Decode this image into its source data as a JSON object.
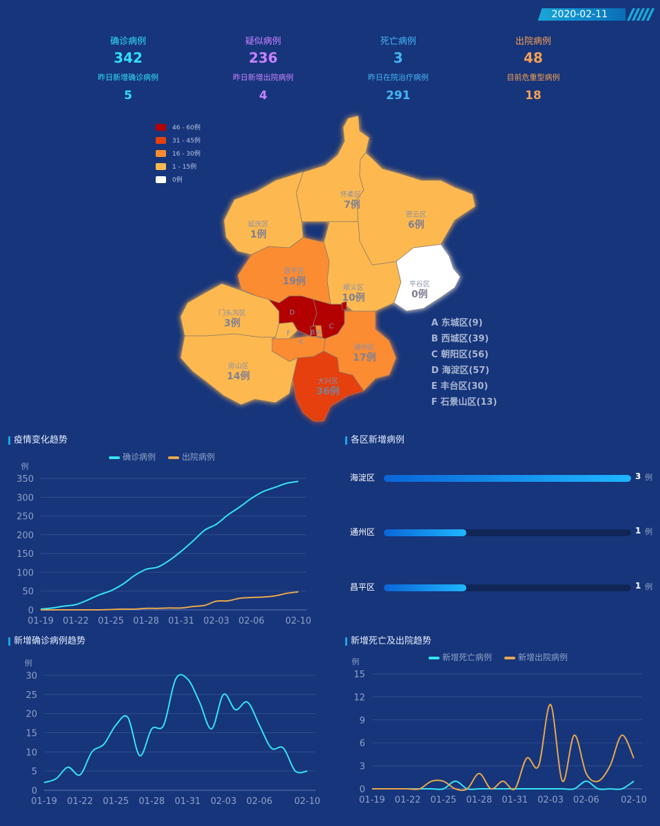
{
  "header": {
    "date": "2020-02-11"
  },
  "stats": [
    {
      "label": "确诊病例",
      "value": "342",
      "sub_label": "昨日新增确诊病例",
      "sub_value": "5",
      "color": "#2fe0f7"
    },
    {
      "label": "疑似病例",
      "value": "236",
      "sub_label": "昨日新增出院病例",
      "sub_value": "4",
      "color": "#c783ff"
    },
    {
      "label": "死亡病例",
      "value": "3",
      "sub_label": "昨日在院治疗病例",
      "sub_value": "291",
      "color": "#45b6f5"
    },
    {
      "label": "出院病例",
      "value": "48",
      "sub_label": "目前危重型病例",
      "sub_value": "18",
      "color": "#f5a056"
    }
  ],
  "map_legend": [
    {
      "label": "46 - 60例",
      "color": "#b30000"
    },
    {
      "label": "31 - 45例",
      "color": "#e5410d"
    },
    {
      "label": "16 - 30例",
      "color": "#fb8c32"
    },
    {
      "label": "1 - 15例",
      "color": "#fdb94f"
    },
    {
      "label": "0例",
      "color": "#ffffff"
    }
  ],
  "map_districts": [
    {
      "name": "怀柔区",
      "count": "7例"
    },
    {
      "name": "密云区",
      "count": "6例"
    },
    {
      "name": "延庆区",
      "count": "1例"
    },
    {
      "name": "昌平区",
      "count": "19例"
    },
    {
      "name": "平谷区",
      "count": "0例"
    },
    {
      "name": "顺义区",
      "count": "10例"
    },
    {
      "name": "门头沟区",
      "count": "3例"
    },
    {
      "name": "通州区",
      "count": "17例"
    },
    {
      "name": "房山区",
      "count": "14例"
    },
    {
      "name": "大兴区",
      "count": "36例"
    }
  ],
  "map_letters": [
    "D",
    "C",
    "F",
    "B",
    "A",
    "E"
  ],
  "district_key": [
    "A 东城区(9)",
    "B 西城区(39)",
    "C 朝阳区(56)",
    "D 海淀区(57)",
    "E 丰台区(30)",
    "F 石景山区(13)"
  ],
  "panels": {
    "trend": "疫情变化趋势",
    "district_new": "各区新增病例",
    "new_confirmed": "新增确诊病例趋势",
    "new_death_discharge": "新增死亡及出院趋势"
  },
  "chart_data": [
    {
      "type": "line",
      "title": "疫情变化趋势",
      "ylabel": "例",
      "ylim": [
        0,
        350
      ],
      "yticks": [
        0,
        50,
        100,
        150,
        200,
        250,
        300,
        350
      ],
      "xticks": [
        "01-19",
        "01-22",
        "01-25",
        "01-28",
        "01-31",
        "02-03",
        "02-06",
        "02-10"
      ],
      "legend_position": "top-center",
      "x": [
        "01-19",
        "01-20",
        "01-21",
        "01-22",
        "01-23",
        "01-24",
        "01-25",
        "01-26",
        "01-27",
        "01-28",
        "01-29",
        "01-30",
        "01-31",
        "02-01",
        "02-02",
        "02-03",
        "02-04",
        "02-05",
        "02-06",
        "02-07",
        "02-08",
        "02-09",
        "02-10"
      ],
      "series": [
        {
          "name": "确诊病例",
          "color": "#35e5f2",
          "values": [
            2,
            5,
            10,
            14,
            26,
            40,
            51,
            68,
            91,
            108,
            114,
            132,
            156,
            183,
            212,
            228,
            253,
            274,
            297,
            315,
            326,
            337,
            342
          ]
        },
        {
          "name": "出院病例",
          "color": "#e9a84b",
          "values": [
            0,
            0,
            0,
            0,
            0,
            0,
            1,
            2,
            2,
            4,
            4,
            5,
            5,
            9,
            12,
            23,
            24,
            31,
            33,
            34,
            37,
            44,
            48
          ]
        }
      ]
    },
    {
      "type": "bar",
      "title": "各区新增病例",
      "orientation": "horizontal",
      "unit": "例",
      "xlim": [
        0,
        3
      ],
      "categories": [
        "海淀区",
        "通州区",
        "昌平区"
      ],
      "values": [
        3,
        1,
        1
      ]
    },
    {
      "type": "line",
      "title": "新增确诊病例趋势",
      "ylabel": "例",
      "ylim": [
        0,
        30
      ],
      "yticks": [
        0,
        5,
        10,
        15,
        20,
        25,
        30
      ],
      "xticks": [
        "01-19",
        "01-22",
        "01-25",
        "01-28",
        "01-31",
        "02-03",
        "02-06",
        "02-10"
      ],
      "x": [
        "01-19",
        "01-20",
        "01-21",
        "01-22",
        "01-23",
        "01-24",
        "01-25",
        "01-26",
        "01-27",
        "01-28",
        "01-29",
        "01-30",
        "01-31",
        "02-01",
        "02-02",
        "02-03",
        "02-04",
        "02-05",
        "02-06",
        "02-07",
        "02-08",
        "02-09",
        "02-10"
      ],
      "series": [
        {
          "name": "新增确诊病例",
          "color": "#35e5f2",
          "values": [
            2,
            3,
            6,
            4,
            10,
            12,
            17,
            19,
            9,
            16,
            17,
            29,
            29,
            23,
            16,
            25,
            21,
            23,
            17,
            11,
            11,
            5,
            5
          ]
        }
      ]
    },
    {
      "type": "line",
      "title": "新增死亡及出院趋势",
      "ylabel": "例",
      "ylim": [
        0,
        15
      ],
      "yticks": [
        0,
        3,
        6,
        9,
        12,
        15
      ],
      "xticks": [
        "01-19",
        "01-22",
        "01-25",
        "01-28",
        "01-31",
        "02-03",
        "02-06",
        "02-10"
      ],
      "legend_position": "top-center",
      "x": [
        "01-19",
        "01-20",
        "01-21",
        "01-22",
        "01-23",
        "01-24",
        "01-25",
        "01-26",
        "01-27",
        "01-28",
        "01-29",
        "01-30",
        "01-31",
        "02-01",
        "02-02",
        "02-03",
        "02-04",
        "02-05",
        "02-06",
        "02-07",
        "02-08",
        "02-09",
        "02-10"
      ],
      "series": [
        {
          "name": "新增死亡病例",
          "color": "#35e5f2",
          "values": [
            0,
            0,
            0,
            0,
            0,
            0,
            0,
            1,
            0,
            0,
            0,
            0,
            0,
            0,
            0,
            0,
            0,
            0,
            1,
            0,
            0,
            0,
            1
          ]
        },
        {
          "name": "新增出院病例",
          "color": "#e9a84b",
          "values": [
            0,
            0,
            0,
            0,
            0,
            1,
            1,
            0,
            0,
            2,
            0,
            1,
            0,
            4,
            3,
            11,
            1,
            7,
            2,
            1,
            3,
            7,
            4
          ]
        }
      ]
    }
  ]
}
